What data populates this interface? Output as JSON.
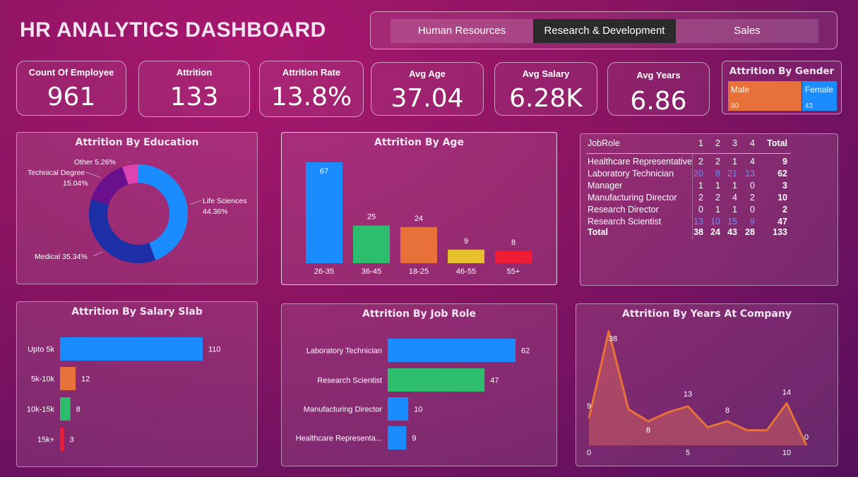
{
  "title": "HR ANALYTICS DASHBOARD",
  "tabs": [
    {
      "label": "Human Resources",
      "active": false
    },
    {
      "label": "Research & Development",
      "active": true
    },
    {
      "label": "Sales",
      "active": false
    }
  ],
  "kpis": {
    "count": {
      "label": "Count Of Employee",
      "value": "961"
    },
    "attrition": {
      "label": "Attrition",
      "value": "133"
    },
    "rate": {
      "label": "Attrition Rate",
      "value": "13.8%"
    },
    "age": {
      "label": "Avg Age",
      "value": "37.04"
    },
    "salary": {
      "label": "Avg Salary",
      "value": "6.28K"
    },
    "years": {
      "label": "Avg Years",
      "value": "6.86"
    }
  },
  "gender": {
    "title": "Attrition By Gender",
    "items": [
      {
        "label": "Male",
        "value": 90,
        "display": "90",
        "color": "#e8713a"
      },
      {
        "label": "Female",
        "value": 43,
        "display": "43",
        "color": "#1a8cff"
      }
    ]
  },
  "chart_data": [
    {
      "type": "pie",
      "title": "Attrition By Education",
      "slices": [
        {
          "label": "Life Sciences",
          "pct": 44.36,
          "display": "44.36%",
          "color": "#1a8cff"
        },
        {
          "label": "Medical",
          "pct": 35.34,
          "display": "35.34%",
          "color": "#1c2fa6"
        },
        {
          "label": "Technical Degree",
          "pct": 15.04,
          "display": "15.04%",
          "color": "#6a0f8e"
        },
        {
          "label": "Other",
          "pct": 5.26,
          "display": "5.26%",
          "color": "#e044b2"
        }
      ]
    },
    {
      "type": "bar",
      "title": "Attrition By Age",
      "categories": [
        "26-35",
        "36-45",
        "18-25",
        "46-55",
        "55+"
      ],
      "values": [
        67,
        25,
        24,
        9,
        8
      ],
      "labels": [
        "67",
        "25",
        "24",
        "9",
        "8"
      ],
      "colors": [
        "#1a8cff",
        "#2ebd6c",
        "#e8713a",
        "#e6c02e",
        "#ee1c34"
      ]
    },
    {
      "type": "bar",
      "orientation": "horizontal",
      "title": "Attrition By Salary Slab",
      "categories": [
        "Upto 5k",
        "5k-10k",
        "10k-15k",
        "15k+"
      ],
      "values": [
        110,
        12,
        8,
        3
      ],
      "labels": [
        "110",
        "12",
        "8",
        "3"
      ],
      "colors": [
        "#1a8cff",
        "#e8713a",
        "#2ebd6c",
        "#ee1c34"
      ]
    },
    {
      "type": "bar",
      "orientation": "horizontal",
      "title": "Attrition By Job Role",
      "categories": [
        "Laboratory Technician",
        "Research Scientist",
        "Manufacturing Director",
        "Healthcare Representa..."
      ],
      "values": [
        62,
        47,
        10,
        9
      ],
      "labels": [
        "62",
        "47",
        "10",
        "9"
      ],
      "colors": [
        "#1a8cff",
        "#2ebd6c",
        "#1a8cff",
        "#1a8cff"
      ]
    },
    {
      "type": "area",
      "title": "Attrition By Years At Company",
      "x": [
        0,
        1,
        2,
        3,
        4,
        5,
        6,
        7,
        8,
        9,
        10,
        11
      ],
      "y": [
        9,
        38,
        12,
        8,
        11,
        13,
        6,
        8,
        5,
        5,
        14,
        0
      ],
      "point_labels": [
        {
          "index": 0,
          "text": "9"
        },
        {
          "index": 1,
          "text": "38"
        },
        {
          "index": 3,
          "text": "8"
        },
        {
          "index": 5,
          "text": "13"
        },
        {
          "index": 7,
          "text": "8"
        },
        {
          "index": 10,
          "text": "14"
        },
        {
          "index": 11,
          "text": "0"
        }
      ],
      "xticks": [
        "0",
        "5",
        "10"
      ],
      "xlim": [
        0,
        11
      ],
      "ylim": [
        0,
        40
      ],
      "color": "#e8713a"
    }
  ],
  "matrix": {
    "header": [
      "JobRole",
      "1",
      "2",
      "3",
      "4",
      "Total"
    ],
    "rows": [
      {
        "role": "Healthcare Representative",
        "vals": [
          "2",
          "2",
          "1",
          "4"
        ],
        "total": "9",
        "highlight": false
      },
      {
        "role": "Laboratory Technician",
        "vals": [
          "20",
          "8",
          "21",
          "13"
        ],
        "total": "62",
        "highlight": true
      },
      {
        "role": "Manager",
        "vals": [
          "1",
          "1",
          "1",
          "0"
        ],
        "total": "3",
        "highlight": false
      },
      {
        "role": "Manufacturing Director",
        "vals": [
          "2",
          "2",
          "4",
          "2"
        ],
        "total": "10",
        "highlight": false
      },
      {
        "role": "Research Director",
        "vals": [
          "0",
          "1",
          "1",
          "0"
        ],
        "total": "2",
        "highlight": false
      },
      {
        "role": "Research Scientist",
        "vals": [
          "13",
          "10",
          "15",
          "9"
        ],
        "total": "47",
        "highlight": true
      }
    ],
    "totals": {
      "label": "Total",
      "vals": [
        "38",
        "24",
        "43",
        "28"
      ],
      "total": "133"
    },
    "highlight_color": "#6d8cf5"
  }
}
